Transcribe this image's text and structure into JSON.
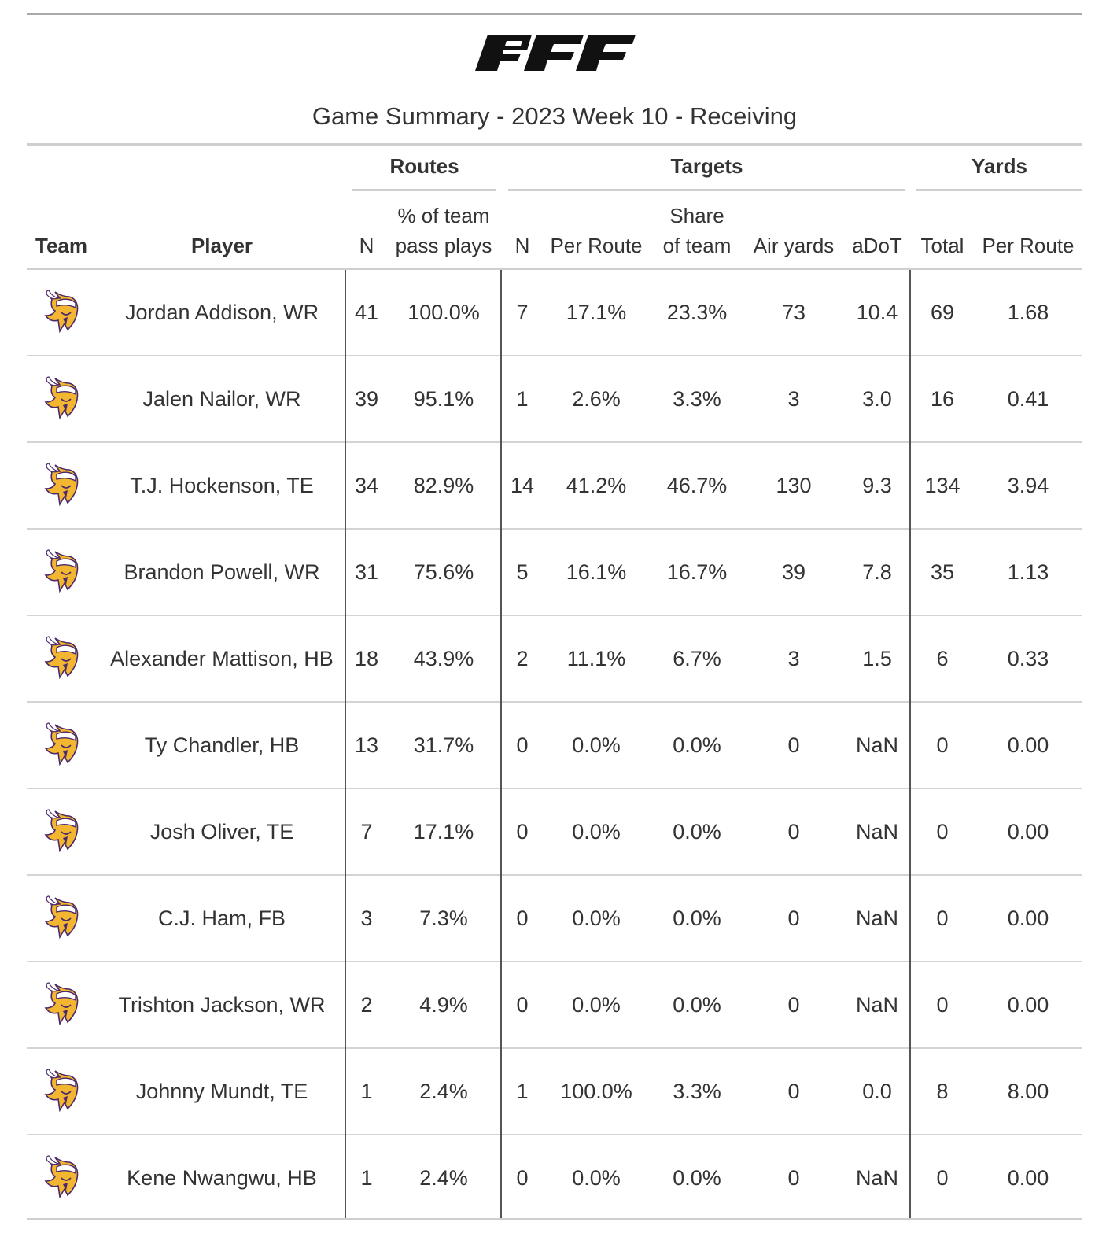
{
  "logo_text": "PFF",
  "title": "Game Summary - 2023 Week 10 - Receiving",
  "spanners": {
    "routes": "Routes",
    "targets": "Targets",
    "yards": "Yards"
  },
  "columns": {
    "team": "Team",
    "player": "Player",
    "routes_n": "N",
    "routes_pct_line1": "% of team",
    "routes_pct_line2": "pass plays",
    "targets_n": "N",
    "targets_per_route": "Per Route",
    "share_line1": "Share",
    "share_line2": "of team",
    "air_yards": "Air yards",
    "adot": "aDoT",
    "yards_total": "Total",
    "yards_per_route": "Per Route"
  },
  "team_icon": "vikings-logo-icon",
  "rows": [
    {
      "player": "Jordan Addison, WR",
      "routes_n": "41",
      "routes_pct": "100.0%",
      "targets_n": "7",
      "targets_per_route": "17.1%",
      "share": "23.3%",
      "air_yards": "73",
      "adot": "10.4",
      "yards_total": "69",
      "yards_per_route": "1.68"
    },
    {
      "player": "Jalen Nailor, WR",
      "routes_n": "39",
      "routes_pct": "95.1%",
      "targets_n": "1",
      "targets_per_route": "2.6%",
      "share": "3.3%",
      "air_yards": "3",
      "adot": "3.0",
      "yards_total": "16",
      "yards_per_route": "0.41"
    },
    {
      "player": "T.J. Hockenson, TE",
      "routes_n": "34",
      "routes_pct": "82.9%",
      "targets_n": "14",
      "targets_per_route": "41.2%",
      "share": "46.7%",
      "air_yards": "130",
      "adot": "9.3",
      "yards_total": "134",
      "yards_per_route": "3.94"
    },
    {
      "player": "Brandon Powell, WR",
      "routes_n": "31",
      "routes_pct": "75.6%",
      "targets_n": "5",
      "targets_per_route": "16.1%",
      "share": "16.7%",
      "air_yards": "39",
      "adot": "7.8",
      "yards_total": "35",
      "yards_per_route": "1.13"
    },
    {
      "player": "Alexander Mattison, HB",
      "routes_n": "18",
      "routes_pct": "43.9%",
      "targets_n": "2",
      "targets_per_route": "11.1%",
      "share": "6.7%",
      "air_yards": "3",
      "adot": "1.5",
      "yards_total": "6",
      "yards_per_route": "0.33"
    },
    {
      "player": "Ty Chandler, HB",
      "routes_n": "13",
      "routes_pct": "31.7%",
      "targets_n": "0",
      "targets_per_route": "0.0%",
      "share": "0.0%",
      "air_yards": "0",
      "adot": "NaN",
      "yards_total": "0",
      "yards_per_route": "0.00"
    },
    {
      "player": "Josh Oliver, TE",
      "routes_n": "7",
      "routes_pct": "17.1%",
      "targets_n": "0",
      "targets_per_route": "0.0%",
      "share": "0.0%",
      "air_yards": "0",
      "adot": "NaN",
      "yards_total": "0",
      "yards_per_route": "0.00"
    },
    {
      "player": "C.J. Ham, FB",
      "routes_n": "3",
      "routes_pct": "7.3%",
      "targets_n": "0",
      "targets_per_route": "0.0%",
      "share": "0.0%",
      "air_yards": "0",
      "adot": "NaN",
      "yards_total": "0",
      "yards_per_route": "0.00"
    },
    {
      "player": "Trishton Jackson, WR",
      "routes_n": "2",
      "routes_pct": "4.9%",
      "targets_n": "0",
      "targets_per_route": "0.0%",
      "share": "0.0%",
      "air_yards": "0",
      "adot": "NaN",
      "yards_total": "0",
      "yards_per_route": "0.00"
    },
    {
      "player": "Johnny Mundt, TE",
      "routes_n": "1",
      "routes_pct": "2.4%",
      "targets_n": "1",
      "targets_per_route": "100.0%",
      "share": "3.3%",
      "air_yards": "0",
      "adot": "0.0",
      "yards_total": "8",
      "yards_per_route": "8.00"
    },
    {
      "player": "Kene Nwangwu, HB",
      "routes_n": "1",
      "routes_pct": "2.4%",
      "targets_n": "0",
      "targets_per_route": "0.0%",
      "share": "0.0%",
      "air_yards": "0",
      "adot": "NaN",
      "yards_total": "0",
      "yards_per_route": "0.00"
    }
  ]
}
